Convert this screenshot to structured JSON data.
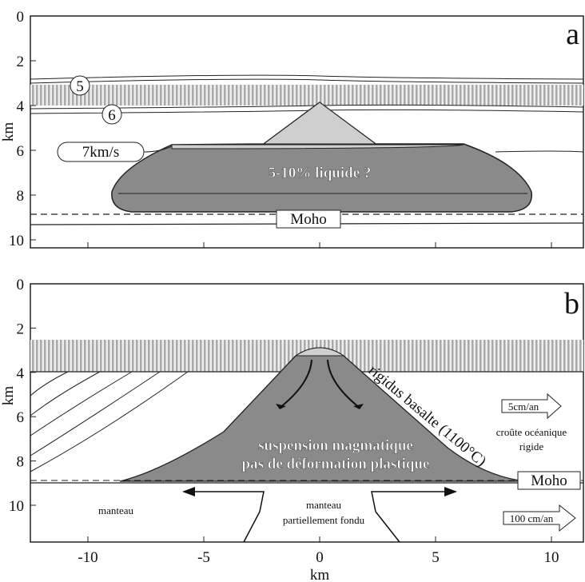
{
  "panels": [
    {
      "label": "a",
      "y_axis_label": "km",
      "yticks": [
        0,
        2,
        4,
        6,
        8,
        10
      ],
      "layers": {
        "layer_5": "5",
        "layer_6": "6",
        "layer_7": "7km/s"
      },
      "lens_label": "5-10% liquide ?",
      "moho": "Moho"
    },
    {
      "label": "b",
      "y_axis_label": "km",
      "yticks": [
        0,
        2,
        4,
        6,
        8,
        10
      ],
      "isotherm": "rigidus basalte (1100°C)",
      "crust_rate": "5cm/an",
      "crust_label": [
        "croûte océanique",
        "rigide"
      ],
      "suspension": [
        "suspension magmatique",
        "pas de déformation plastique"
      ],
      "moho": "Moho",
      "mantle": "manteau",
      "melt": [
        "manteau",
        "partiellement fondu"
      ],
      "mantle_rate": "100 cm/an"
    }
  ],
  "x_axis": {
    "label": "km",
    "ticks": [
      -10,
      -5,
      0,
      5,
      10
    ]
  }
}
